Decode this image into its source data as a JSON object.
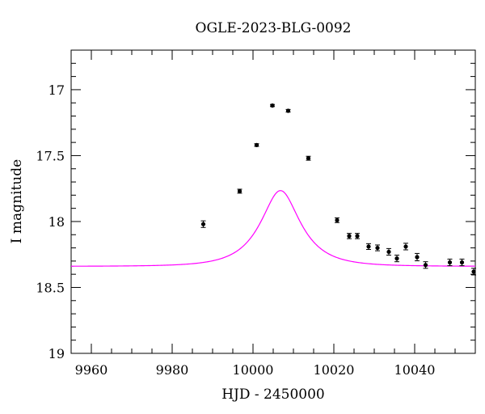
{
  "chart_data": {
    "type": "scatter",
    "title": "OGLE-2023-BLG-0092",
    "xlabel": "HJD - 2450000",
    "ylabel": "I magnitude",
    "xlim": [
      9955,
      10055
    ],
    "ylim": [
      19.0,
      16.7
    ],
    "y_inverted": true,
    "x_ticks": [
      9960,
      9980,
      10000,
      10020,
      10040
    ],
    "y_ticks": [
      17,
      17.5,
      18,
      18.5,
      19
    ],
    "grid": false,
    "colors": {
      "data": "#000000",
      "model": "#ff00ff"
    },
    "series": [
      {
        "kind": "points-with-errorbars",
        "x": [
          9987.7,
          9996.7,
          10000.9,
          10004.8,
          10008.7,
          10013.7,
          10020.8,
          10023.8,
          10025.8,
          10028.6,
          10030.8,
          10033.6,
          10035.6,
          10037.8,
          10040.6,
          10042.7,
          10048.7,
          10051.7,
          10054.6
        ],
        "y": [
          18.02,
          17.77,
          17.42,
          17.12,
          17.16,
          17.52,
          17.99,
          18.11,
          18.11,
          18.19,
          18.2,
          18.23,
          18.28,
          18.19,
          18.27,
          18.33,
          18.31,
          18.31,
          18.38
        ],
        "yerr": [
          0.025,
          0.015,
          0.01,
          0.008,
          0.01,
          0.015,
          0.018,
          0.02,
          0.02,
          0.022,
          0.022,
          0.025,
          0.025,
          0.025,
          0.028,
          0.025,
          0.025,
          0.025,
          0.025
        ]
      },
      {
        "kind": "model-curve",
        "model": "point-lens",
        "t0": 10006.8,
        "tE": 9.0,
        "u0": 0.5,
        "baseline_mag": 18.34,
        "fs": 0.59
      }
    ]
  }
}
